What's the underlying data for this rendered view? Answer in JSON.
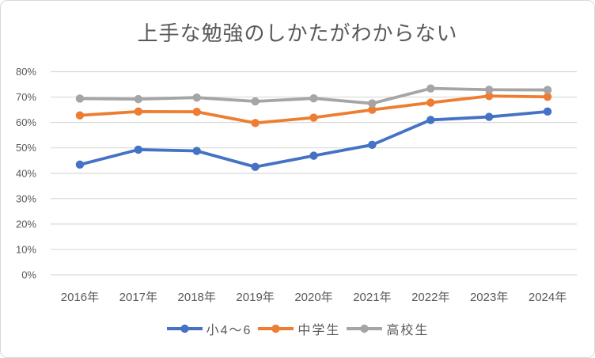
{
  "chart_data": {
    "type": "line",
    "title": "上手な勉強のしかたがわからない",
    "categories": [
      "2016年",
      "2017年",
      "2018年",
      "2019年",
      "2020年",
      "2021年",
      "2022年",
      "2023年",
      "2024年"
    ],
    "series": [
      {
        "name": "小4〜6",
        "key": "elementary-grade4-6",
        "color": "#4472C4",
        "values": [
          43.4,
          49.3,
          48.8,
          42.5,
          46.9,
          51.2,
          61.0,
          62.2,
          64.3
        ]
      },
      {
        "name": "中学生",
        "key": "junior-high-students",
        "color": "#ED7D31",
        "values": [
          62.8,
          64.3,
          64.2,
          59.8,
          61.9,
          65.0,
          67.8,
          70.4,
          70.1
        ]
      },
      {
        "name": "高校生",
        "key": "high-school-students",
        "color": "#A5A5A5",
        "values": [
          69.4,
          69.2,
          69.8,
          68.3,
          69.5,
          67.5,
          73.4,
          72.9,
          72.8
        ]
      }
    ],
    "xlabel": "",
    "ylabel": "",
    "ylim": [
      0,
      80
    ],
    "y_ticks": [
      0,
      10,
      20,
      30,
      40,
      50,
      60,
      70,
      80
    ],
    "y_tick_suffix": "%",
    "grid": "horizontal",
    "legend_position": "bottom"
  },
  "theme": {
    "grid_color": "#D9D9D9",
    "border_color": "#D9D9D9",
    "text_color": "#595959",
    "background": "#FFFFFF"
  }
}
